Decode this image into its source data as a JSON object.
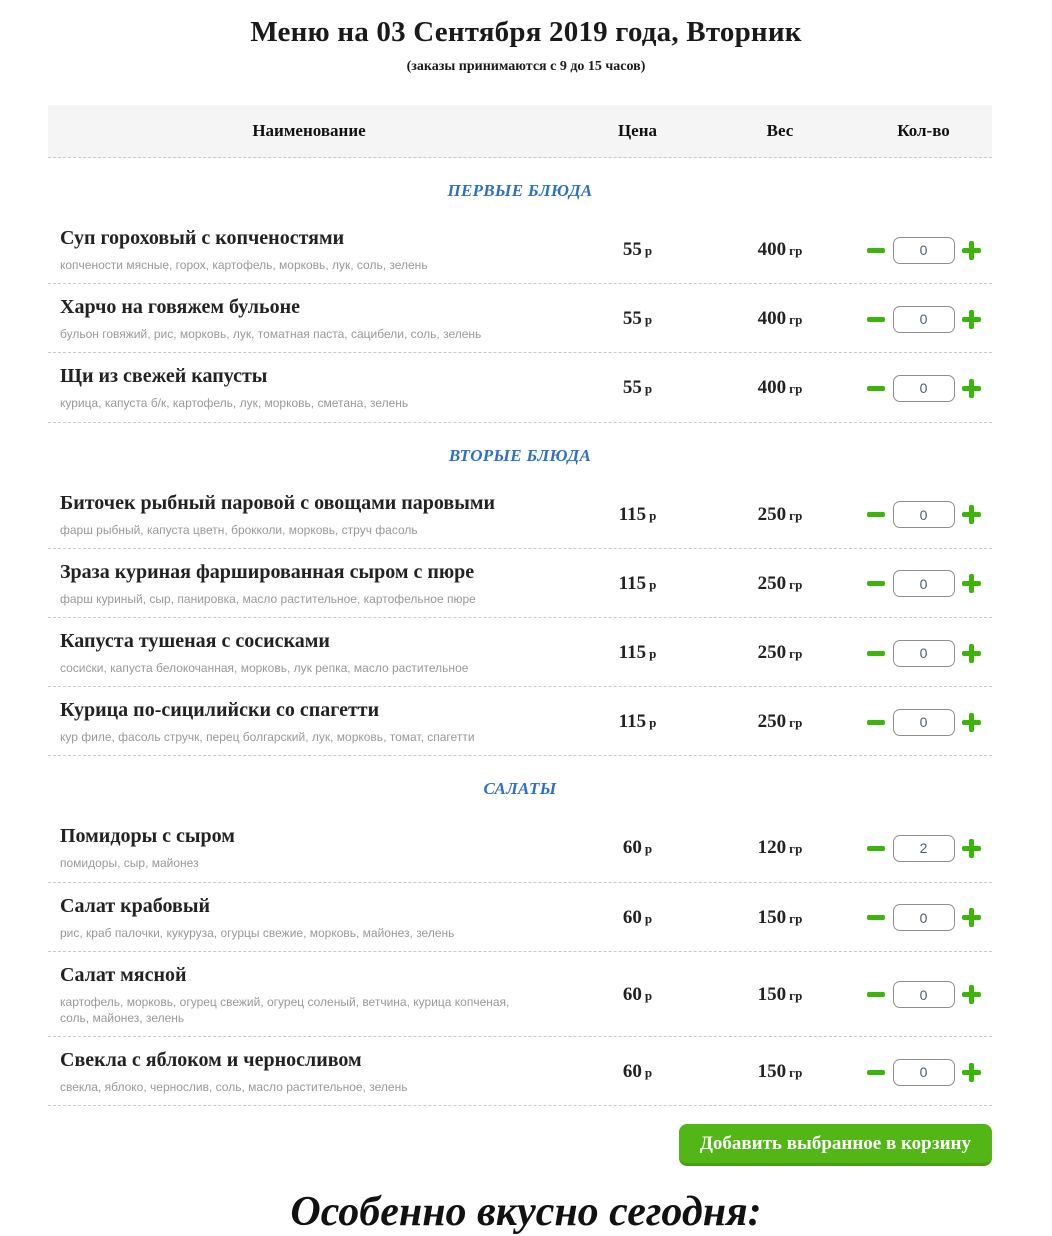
{
  "page": {
    "title": "Меню на 03 Сентября 2019 года, Вторник",
    "subtitle": "(заказы принимаются с 9 до 15 часов)",
    "footer_heading": "Особенно вкусно сегодня:"
  },
  "table": {
    "headers": {
      "name": "Наименование",
      "price": "Цена",
      "weight": "Вес",
      "qty": "Кол-во"
    }
  },
  "stepper": {
    "minus_icon": "minus-icon",
    "plus_icon": "plus-icon"
  },
  "cart_button": {
    "label": "Добавить выбранное в корзину"
  },
  "colors": {
    "section_title_blue": "#2d6fc9",
    "stepper_green": "#3cb50a",
    "button_green": "#52b616",
    "ingredients_gray": "#999999",
    "header_bg": "#f5f5f5",
    "dashed_border": "#c9c9c9"
  },
  "sections": [
    {
      "title": "ПЕРВЫЕ БЛЮДА",
      "items": [
        {
          "name": "Суп гороховый с копченостями",
          "ingredients": "копчености мясные, горох, картофель, морковь, лук, соль, зелень",
          "price": "55",
          "price_unit": "р",
          "weight": "400",
          "weight_unit": "гр",
          "qty": "0"
        },
        {
          "name": "Харчо на говяжем бульоне",
          "ingredients": "бульон говяжий, рис, морковь, лук, томатная паста, сацибели, соль, зелень",
          "price": "55",
          "price_unit": "р",
          "weight": "400",
          "weight_unit": "гр",
          "qty": "0"
        },
        {
          "name": "Щи из свежей капусты",
          "ingredients": "курица, капуста б/к, картофель, лук, морковь, сметана, зелень",
          "price": "55",
          "price_unit": "р",
          "weight": "400",
          "weight_unit": "гр",
          "qty": "0"
        }
      ]
    },
    {
      "title": "ВТОРЫЕ БЛЮДА",
      "items": [
        {
          "name": "Биточек рыбный паровой с овощами паровыми",
          "ingredients": "фарш рыбный, капуста цветн, брокколи, морковь, струч фасоль",
          "price": "115",
          "price_unit": "р",
          "weight": "250",
          "weight_unit": "гр",
          "qty": "0"
        },
        {
          "name": "Зраза куриная фаршированная сыром с пюре",
          "ingredients": "фарш куриный, сыр, панировка, масло растительное, картофельное пюре",
          "price": "115",
          "price_unit": "р",
          "weight": "250",
          "weight_unit": "гр",
          "qty": "0"
        },
        {
          "name": "Капуста тушеная с сосисками",
          "ingredients": "сосиски, капуста белокочанная, морковь, лук репка, масло растительное",
          "price": "115",
          "price_unit": "р",
          "weight": "250",
          "weight_unit": "гр",
          "qty": "0"
        },
        {
          "name": "Курица по-сицилийски со спагетти",
          "ingredients": "кур филе, фасоль стручк, перец болгарский, лук, морковь, томат, спагетти",
          "price": "115",
          "price_unit": "р",
          "weight": "250",
          "weight_unit": "гр",
          "qty": "0"
        }
      ]
    },
    {
      "title": "САЛАТЫ",
      "items": [
        {
          "name": "Помидоры с сыром",
          "ingredients": "помидоры, сыр, майонез",
          "price": "60",
          "price_unit": "р",
          "weight": "120",
          "weight_unit": "гр",
          "qty": "2"
        },
        {
          "name": "Салат крабовый",
          "ingredients": "рис, краб палочки, кукуруза, огурцы свежие, морковь, майонез, зелень",
          "price": "60",
          "price_unit": "р",
          "weight": "150",
          "weight_unit": "гр",
          "qty": "0"
        },
        {
          "name": "Салат мясной",
          "ingredients": "картофель, морковь, огурец свежий, огурец соленый, ветчина, курица копченая, соль, майонез, зелень",
          "price": "60",
          "price_unit": "р",
          "weight": "150",
          "weight_unit": "гр",
          "qty": "0"
        },
        {
          "name": "Свекла с яблоком и черносливом",
          "ingredients": "свекла, яблоко, чернослив, соль, масло растительное, зелень",
          "price": "60",
          "price_unit": "р",
          "weight": "150",
          "weight_unit": "гр",
          "qty": "0"
        }
      ]
    }
  ]
}
